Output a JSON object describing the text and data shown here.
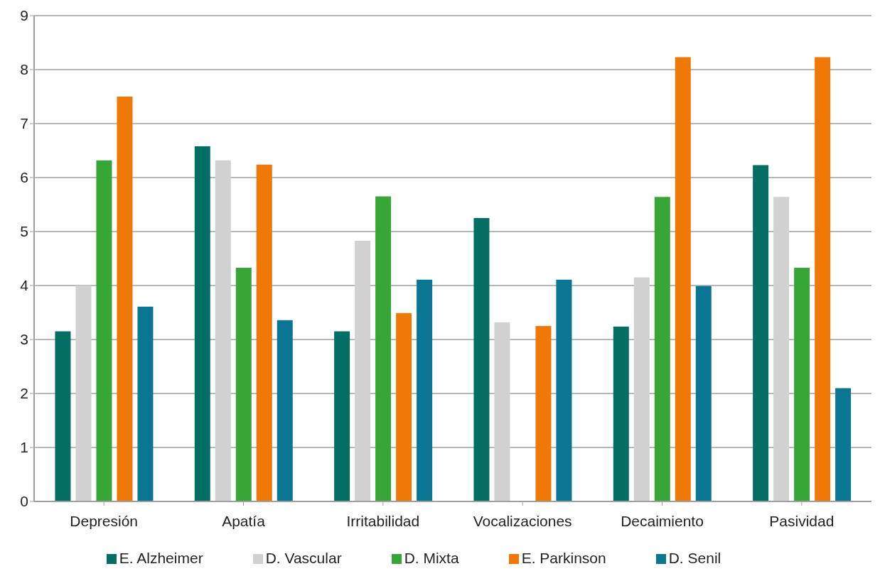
{
  "chart_data": {
    "type": "bar",
    "categories": [
      "Depresión",
      "Apatía",
      "Irritabilidad",
      "Vocalizaciones",
      "Decaimiento",
      "Pasividad"
    ],
    "series": [
      {
        "name": "E. Alzheimer",
        "color": "#026e64",
        "values": [
          3.15,
          6.58,
          3.15,
          5.25,
          3.24,
          6.23
        ]
      },
      {
        "name": "D. Vascular",
        "color": "#d1d1d1",
        "values": [
          4.0,
          6.32,
          4.83,
          3.32,
          4.15,
          5.64
        ]
      },
      {
        "name": "D. Mixta",
        "color": "#38a636",
        "values": [
          6.32,
          4.33,
          5.65,
          0,
          5.64,
          4.33
        ]
      },
      {
        "name": "E. Parkinson",
        "color": "#ef7806",
        "values": [
          7.5,
          6.24,
          3.49,
          3.25,
          8.23,
          8.23
        ]
      },
      {
        "name": "D. Senil",
        "color": "#0a7693",
        "values": [
          3.61,
          3.36,
          4.11,
          4.11,
          3.99,
          2.1
        ]
      }
    ],
    "ylim": [
      0,
      9
    ],
    "yticks": [
      0,
      1,
      2,
      3,
      4,
      5,
      6,
      7,
      8,
      9
    ],
    "grid": "y",
    "legend": "bottom"
  }
}
